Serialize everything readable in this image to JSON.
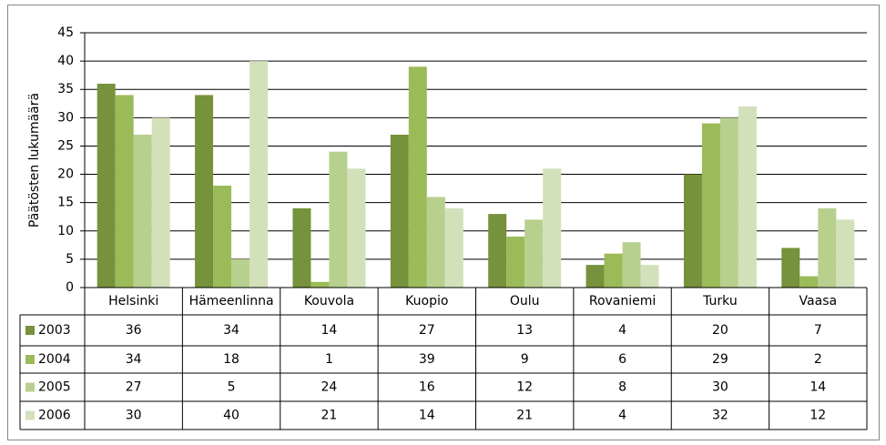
{
  "chart_data": {
    "type": "bar",
    "y_label": "Päätösten lukumäärä",
    "categories": [
      "Helsinki",
      "Hämeenlinna",
      "Kouvola",
      "Kuopio",
      "Oulu",
      "Rovaniemi",
      "Turku",
      "Vaasa"
    ],
    "series": [
      {
        "name": "2003",
        "color": "#76923c",
        "values": [
          36,
          34,
          14,
          27,
          13,
          4,
          20,
          7
        ]
      },
      {
        "name": "2004",
        "color": "#9bbb59",
        "values": [
          34,
          18,
          1,
          39,
          9,
          6,
          29,
          2
        ]
      },
      {
        "name": "2005",
        "color": "#b8d08e",
        "values": [
          27,
          5,
          24,
          16,
          12,
          8,
          30,
          14
        ]
      },
      {
        "name": "2006",
        "color": "#d3e1bb",
        "values": [
          30,
          40,
          21,
          14,
          21,
          4,
          32,
          12
        ]
      }
    ],
    "ylim": [
      0,
      45
    ],
    "yticks": [
      0,
      5,
      10,
      15,
      20,
      25,
      30,
      35,
      40,
      45
    ],
    "grid": true
  }
}
